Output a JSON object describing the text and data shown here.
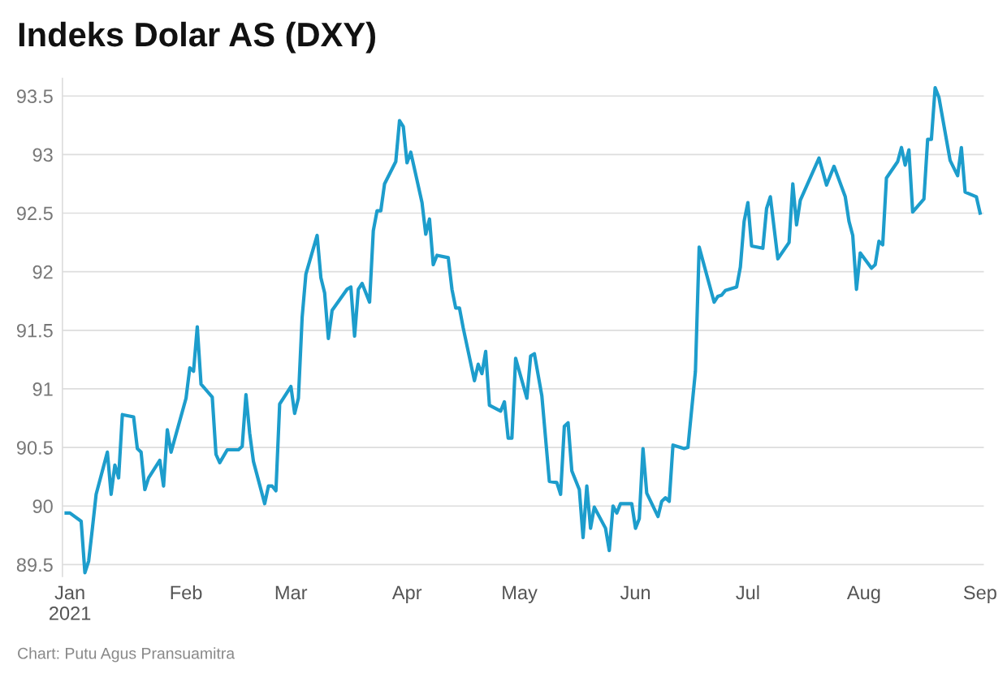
{
  "chart_data": {
    "type": "line",
    "title": "Indeks Dolar AS (DXY)",
    "annotations": [
      "Chart: Putu Agus Pransuamitra"
    ],
    "xlim": [
      "2020-12-30",
      "2021-09-02"
    ],
    "xticks": [
      {
        "value": "2021-01-01",
        "label": "Jan\n2021"
      },
      {
        "value": "2021-02-01",
        "label": "Feb"
      },
      {
        "value": "2021-03-01",
        "label": "Mar"
      },
      {
        "value": "2021-04-01",
        "label": "Apr"
      },
      {
        "value": "2021-05-01",
        "label": "May"
      },
      {
        "value": "2021-06-01",
        "label": "Jun"
      },
      {
        "value": "2021-07-01",
        "label": "Jul"
      },
      {
        "value": "2021-08-01",
        "label": "Aug"
      },
      {
        "value": "2021-09-01",
        "label": "Sep"
      }
    ],
    "ylim": [
      89.4,
      93.65
    ],
    "yticks": [
      89.5,
      90,
      90.5,
      91,
      91.5,
      92,
      92.5,
      93,
      93.5
    ],
    "grid": "y",
    "legend": false,
    "marker": "none",
    "line_style": "solid",
    "series": [
      {
        "color": "#1d9dcc",
        "x": [
          "2020-12-31",
          "2021-01-01",
          "2021-01-04",
          "2021-01-05",
          "2021-01-06",
          "2021-01-07",
          "2021-01-08",
          "2021-01-11",
          "2021-01-12",
          "2021-01-13",
          "2021-01-14",
          "2021-01-15",
          "2021-01-18",
          "2021-01-19",
          "2021-01-20",
          "2021-01-21",
          "2021-01-22",
          "2021-01-25",
          "2021-01-26",
          "2021-01-27",
          "2021-01-28",
          "2021-02-01",
          "2021-02-02",
          "2021-02-03",
          "2021-02-04",
          "2021-02-05",
          "2021-02-08",
          "2021-02-09",
          "2021-02-10",
          "2021-02-12",
          "2021-02-15",
          "2021-02-16",
          "2021-02-17",
          "2021-02-18",
          "2021-02-19",
          "2021-02-22",
          "2021-02-23",
          "2021-02-24",
          "2021-02-25",
          "2021-02-26",
          "2021-03-01",
          "2021-03-02",
          "2021-03-03",
          "2021-03-04",
          "2021-03-05",
          "2021-03-08",
          "2021-03-09",
          "2021-03-10",
          "2021-03-11",
          "2021-03-12",
          "2021-03-16",
          "2021-03-17",
          "2021-03-18",
          "2021-03-19",
          "2021-03-20",
          "2021-03-22",
          "2021-03-23",
          "2021-03-24",
          "2021-03-25",
          "2021-03-26",
          "2021-03-29",
          "2021-03-30",
          "2021-03-31",
          "2021-04-01",
          "2021-04-02",
          "2021-04-05",
          "2021-04-06",
          "2021-04-07",
          "2021-04-08",
          "2021-04-09",
          "2021-04-12",
          "2021-04-13",
          "2021-04-14",
          "2021-04-15",
          "2021-04-16",
          "2021-04-19",
          "2021-04-20",
          "2021-04-21",
          "2021-04-22",
          "2021-04-23",
          "2021-04-26",
          "2021-04-27",
          "2021-04-28",
          "2021-04-29",
          "2021-04-30",
          "2021-05-03",
          "2021-05-04",
          "2021-05-05",
          "2021-05-07",
          "2021-05-09",
          "2021-05-11",
          "2021-05-12",
          "2021-05-13",
          "2021-05-14",
          "2021-05-15",
          "2021-05-17",
          "2021-05-18",
          "2021-05-19",
          "2021-05-20",
          "2021-05-21",
          "2021-05-24",
          "2021-05-25",
          "2021-05-26",
          "2021-05-27",
          "2021-05-28",
          "2021-05-31",
          "2021-06-01",
          "2021-06-02",
          "2021-06-03",
          "2021-06-04",
          "2021-06-07",
          "2021-06-08",
          "2021-06-09",
          "2021-06-10",
          "2021-06-11",
          "2021-06-14",
          "2021-06-15",
          "2021-06-17",
          "2021-06-18",
          "2021-06-22",
          "2021-06-23",
          "2021-06-24",
          "2021-06-25",
          "2021-06-28",
          "2021-06-29",
          "2021-06-30",
          "2021-07-01",
          "2021-07-02",
          "2021-07-05",
          "2021-07-06",
          "2021-07-07",
          "2021-07-09",
          "2021-07-12",
          "2021-07-13",
          "2021-07-14",
          "2021-07-15",
          "2021-07-20",
          "2021-07-22",
          "2021-07-24",
          "2021-07-27",
          "2021-07-28",
          "2021-07-29",
          "2021-07-30",
          "2021-07-31",
          "2021-08-03",
          "2021-08-04",
          "2021-08-05",
          "2021-08-06",
          "2021-08-07",
          "2021-08-10",
          "2021-08-11",
          "2021-08-12",
          "2021-08-13",
          "2021-08-14",
          "2021-08-17",
          "2021-08-18",
          "2021-08-19",
          "2021-08-20",
          "2021-08-21",
          "2021-08-24",
          "2021-08-26",
          "2021-08-27",
          "2021-08-28",
          "2021-08-31",
          "2021-09-01"
        ],
        "values": [
          89.94,
          89.94,
          89.87,
          89.43,
          89.53,
          89.81,
          90.1,
          90.46,
          90.1,
          90.35,
          90.24,
          90.78,
          90.76,
          90.49,
          90.46,
          90.14,
          90.24,
          90.39,
          90.17,
          90.65,
          90.46,
          90.92,
          91.18,
          91.15,
          91.53,
          91.04,
          90.93,
          90.44,
          90.37,
          90.48,
          90.48,
          90.51,
          90.95,
          90.62,
          90.38,
          90.02,
          90.17,
          90.17,
          90.13,
          90.87,
          91.02,
          90.79,
          90.92,
          91.61,
          91.98,
          92.31,
          91.95,
          91.82,
          91.43,
          91.67,
          91.85,
          91.87,
          91.45,
          91.85,
          91.9,
          91.74,
          92.35,
          92.52,
          92.52,
          92.75,
          92.94,
          93.29,
          93.24,
          92.93,
          93.02,
          92.59,
          92.32,
          92.45,
          92.06,
          92.14,
          92.12,
          91.85,
          91.69,
          91.69,
          91.52,
          91.07,
          91.21,
          91.13,
          91.32,
          90.86,
          90.81,
          90.89,
          90.58,
          90.58,
          91.26,
          90.92,
          91.28,
          91.3,
          90.94,
          90.21,
          90.2,
          90.1,
          90.68,
          90.71,
          90.3,
          90.14,
          89.73,
          90.17,
          89.81,
          89.99,
          89.81,
          89.62,
          90.0,
          89.94,
          90.02,
          90.02,
          89.81,
          89.89,
          90.49,
          90.11,
          89.91,
          90.04,
          90.07,
          90.04,
          90.52,
          90.49,
          90.5,
          91.15,
          92.21,
          91.74,
          91.79,
          91.8,
          91.84,
          91.87,
          92.04,
          92.43,
          92.59,
          92.22,
          92.2,
          92.54,
          92.64,
          92.11,
          92.25,
          92.75,
          92.4,
          92.61,
          92.97,
          92.74,
          92.9,
          92.64,
          92.43,
          92.31,
          91.85,
          92.16,
          92.03,
          92.06,
          92.26,
          92.23,
          92.8,
          92.94,
          93.06,
          92.91,
          93.04,
          92.51,
          92.62,
          93.13,
          93.13,
          93.57,
          93.49,
          92.95,
          92.82,
          93.06,
          92.68,
          92.64,
          92.5
        ]
      }
    ]
  }
}
